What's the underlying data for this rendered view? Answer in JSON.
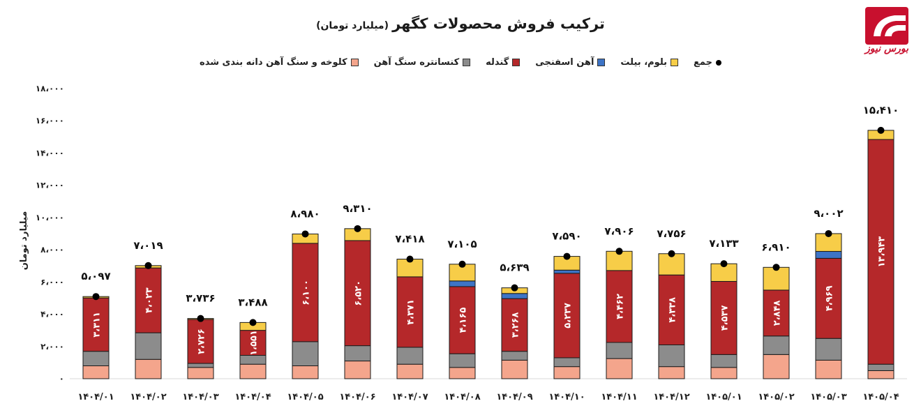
{
  "chart_data": {
    "type": "bar",
    "stacked": true,
    "title": "ترکیب فروش محصولات کگهر",
    "subtitle": "(میلیارد تومان)",
    "ylabel": "میلیارد تومان",
    "ylim": [
      0,
      18000
    ],
    "yticks": [
      "۰",
      "۲،۰۰۰",
      "۴،۰۰۰",
      "۶،۰۰۰",
      "۸،۰۰۰",
      "۱۰،۰۰۰",
      "۱۲،۰۰۰",
      "۱۴،۰۰۰",
      "۱۶،۰۰۰",
      "۱۸،۰۰۰"
    ],
    "legend_position": "top",
    "categories": [
      "۱۴۰۴/۰۱",
      "۱۴۰۴/۰۲",
      "۱۴۰۴/۰۳",
      "۱۴۰۴/۰۴",
      "۱۴۰۴/۰۵",
      "۱۴۰۴/۰۶",
      "۱۴۰۴/۰۷",
      "۱۴۰۴/۰۸",
      "۱۴۰۴/۰۹",
      "۱۴۰۴/۱۰",
      "۱۴۰۴/۱۱",
      "۱۴۰۴/۱۲",
      "۱۴۰۵/۰۱",
      "۱۴۰۵/۰۲",
      "۱۴۰۵/۰۳",
      "۱۴۰۵/۰۴"
    ],
    "series": [
      {
        "name": "کلوخه و سنگ آهن دانه بندی شده",
        "color": "#f4a58c",
        "values": [
          800,
          1200,
          700,
          900,
          800,
          1100,
          900,
          700,
          1150,
          750,
          1250,
          750,
          700,
          1500,
          1150,
          500
        ]
      },
      {
        "name": "کنسانتره سنگ آهن",
        "color": "#8c8c8c",
        "values": [
          900,
          1650,
          250,
          550,
          1500,
          950,
          1050,
          850,
          550,
          550,
          1000,
          1350,
          800,
          1150,
          1350,
          400
        ]
      },
      {
        "name": "گندله",
        "color": "#b5282a",
        "values": [
          3311,
          4023,
          2726,
          1551,
          6100,
          6520,
          4371,
          4165,
          3268,
          5237,
          4462,
          4338,
          4537,
          2848,
          4969,
          13943
        ]
      },
      {
        "name": "آهن اسفنجی",
        "color": "#3d74c6",
        "values": [
          0,
          0,
          0,
          0,
          0,
          0,
          0,
          350,
          320,
          200,
          0,
          0,
          0,
          0,
          430,
          0
        ]
      },
      {
        "name": "بلوم، بیلت",
        "color": "#f7cd48",
        "values": [
          86,
          146,
          60,
          487,
          580,
          740,
          1097,
          1040,
          351,
          853,
          1194,
          1318,
          1096,
          1412,
          1103,
          567
        ]
      }
    ],
    "totals": [
      5097,
      7019,
      3736,
      3488,
      8980,
      9310,
      7418,
      7105,
      5639,
      7590,
      7906,
      7756,
      7133,
      6910,
      9002,
      15410
    ],
    "totals_series_name": "جمع",
    "total_labels": [
      "۵،۰۹۷",
      "۷،۰۱۹",
      "۳،۷۳۶",
      "۳،۴۸۸",
      "۸،۹۸۰",
      "۹،۳۱۰",
      "۷،۴۱۸",
      "۷،۱۰۵",
      "۵،۶۳۹",
      "۷،۵۹۰",
      "۷،۹۰۶",
      "۷،۷۵۶",
      "۷،۱۳۳",
      "۶،۹۱۰",
      "۹،۰۰۲",
      "۱۵،۴۱۰"
    ],
    "pellet_labels": [
      "۳،۳۱۱",
      "۴،۰۲۳",
      "۲،۷۲۶",
      "۱،۵۵۱",
      "۶،۱۰۰",
      "۶،۵۲۰",
      "۴،۳۷۱",
      "۴،۱۶۵",
      "۳،۲۶۸",
      "۵،۲۳۷",
      "۴،۴۶۲",
      "۴،۳۳۸",
      "۴،۵۳۷",
      "۲،۸۴۸",
      "۴،۹۶۹",
      "۱۳،۹۴۳"
    ]
  },
  "logo": {
    "text": "بورس نیوز",
    "color": "#c8102e"
  }
}
